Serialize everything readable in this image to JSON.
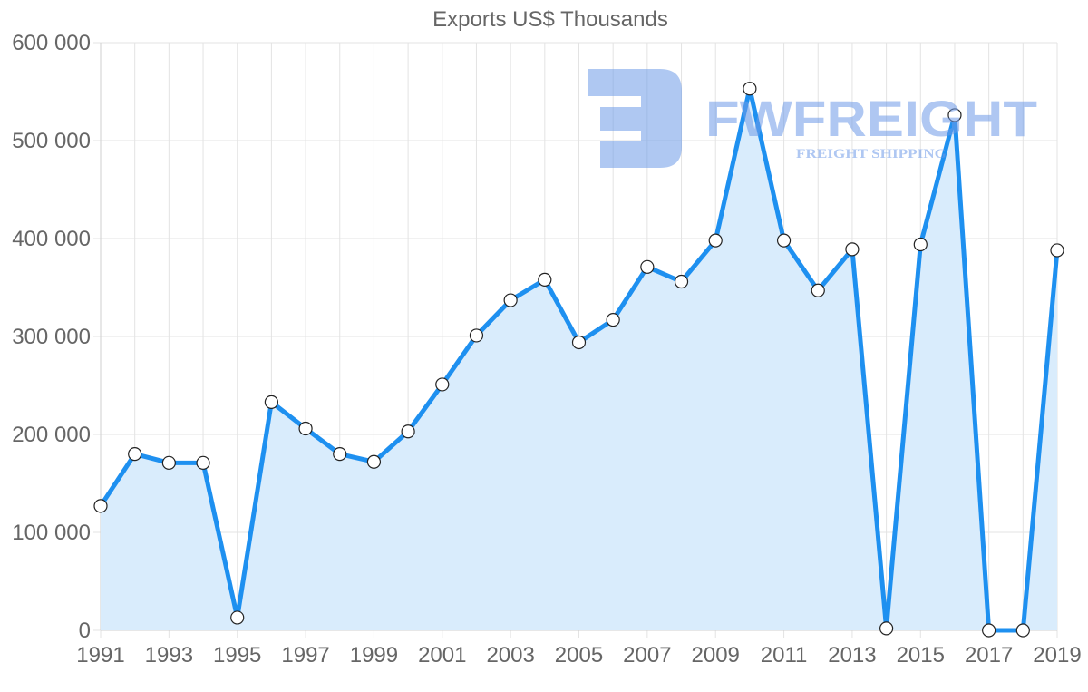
{
  "chart_data": {
    "type": "line",
    "title": "Exports US$ Thousands",
    "xlabel": "",
    "ylabel": "",
    "x": [
      1991,
      1992,
      1993,
      1994,
      1995,
      1996,
      1997,
      1998,
      1999,
      2000,
      2001,
      2002,
      2003,
      2004,
      2005,
      2006,
      2007,
      2008,
      2009,
      2010,
      2011,
      2012,
      2013,
      2014,
      2015,
      2016,
      2017,
      2018,
      2019
    ],
    "series": [
      {
        "name": "Exports US$ Thousands",
        "values": [
          127000,
          180000,
          171000,
          171000,
          13000,
          233000,
          206000,
          180000,
          172000,
          203000,
          251000,
          301000,
          337000,
          358000,
          294000,
          317000,
          371000,
          356000,
          398000,
          553000,
          398000,
          347000,
          389000,
          2000,
          394000,
          526000,
          0,
          0,
          388000
        ],
        "color": "#1e90f0",
        "fill": "#d9ecfc"
      }
    ],
    "x_tick_labels": [
      "1991",
      "1993",
      "1995",
      "1997",
      "1999",
      "2001",
      "2003",
      "2005",
      "2007",
      "2009",
      "2011",
      "2013",
      "2015",
      "2017",
      "2019"
    ],
    "y_tick_labels": [
      "0",
      "100 000",
      "200 000",
      "300 000",
      "400 000",
      "500 000",
      "600 000"
    ],
    "y_ticks": [
      0,
      100000,
      200000,
      300000,
      400000,
      500000,
      600000
    ],
    "ylim": [
      0,
      600000
    ],
    "grid": true,
    "legend": "none"
  },
  "watermark": {
    "brand": "FWFREIGHT",
    "tagline": "FREIGHT SHIPPING"
  }
}
